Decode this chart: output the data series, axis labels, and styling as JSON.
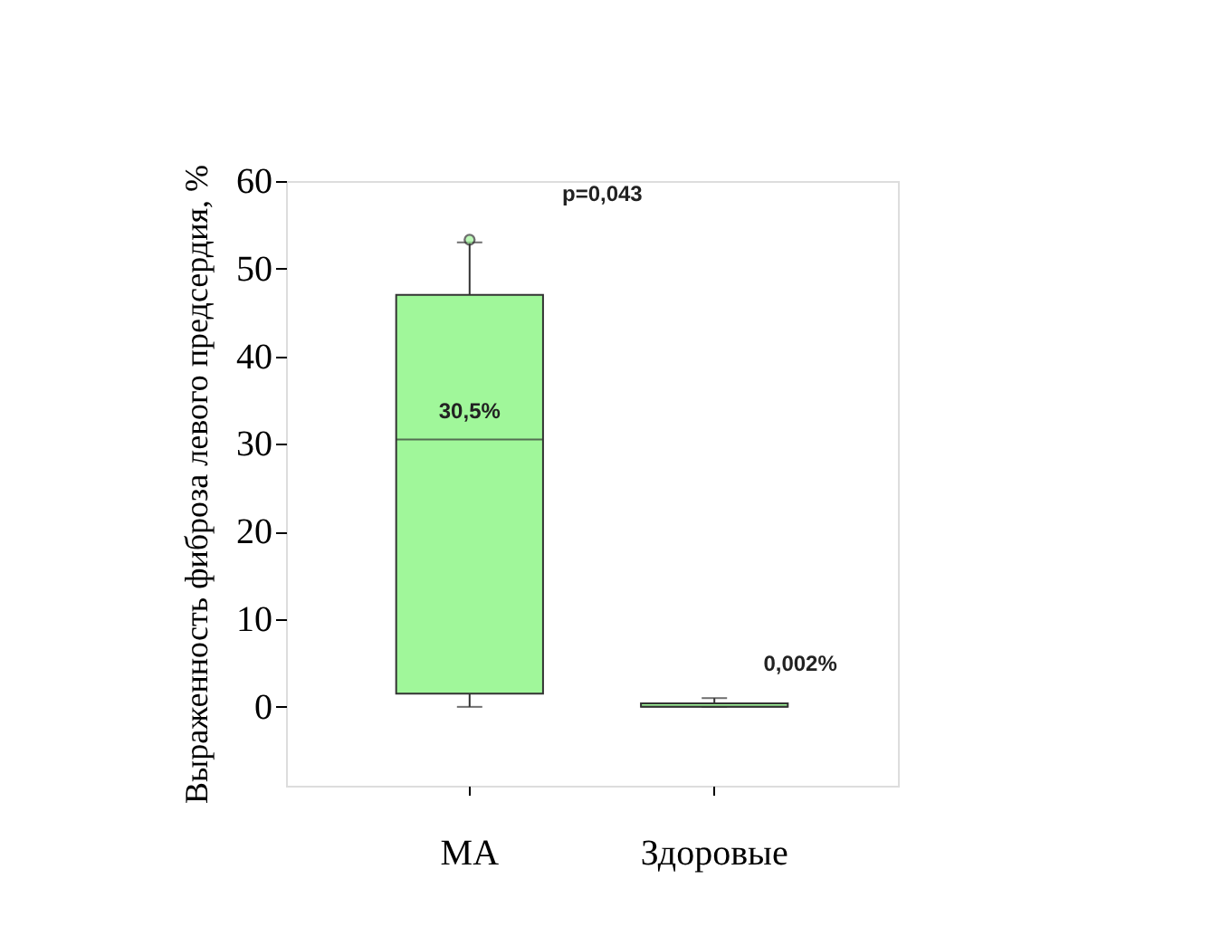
{
  "chart_data": {
    "type": "box",
    "ylabel": "Выраженность фиброза левого предсердия, %",
    "categories": [
      "МА",
      "Здоровые"
    ],
    "boxes": [
      {
        "low": 0,
        "q1": 1.5,
        "median": 30.5,
        "q3": 47,
        "high": 53,
        "outliers": [
          53.3
        ]
      },
      {
        "low": 0,
        "q1": 0,
        "median": 0.002,
        "q3": 0.4,
        "high": 1
      }
    ],
    "color": "#a0f79a",
    "ylim": [
      -9,
      60
    ],
    "yticks": [
      0,
      10,
      20,
      30,
      40,
      50,
      60
    ],
    "grid": false,
    "annotations": [
      "p=0,043",
      {
        "text": "30,5%",
        "x": "МА",
        "y": 30.5
      },
      {
        "text": "0,002%",
        "x": "Здоровые",
        "y": 0.002
      }
    ]
  }
}
